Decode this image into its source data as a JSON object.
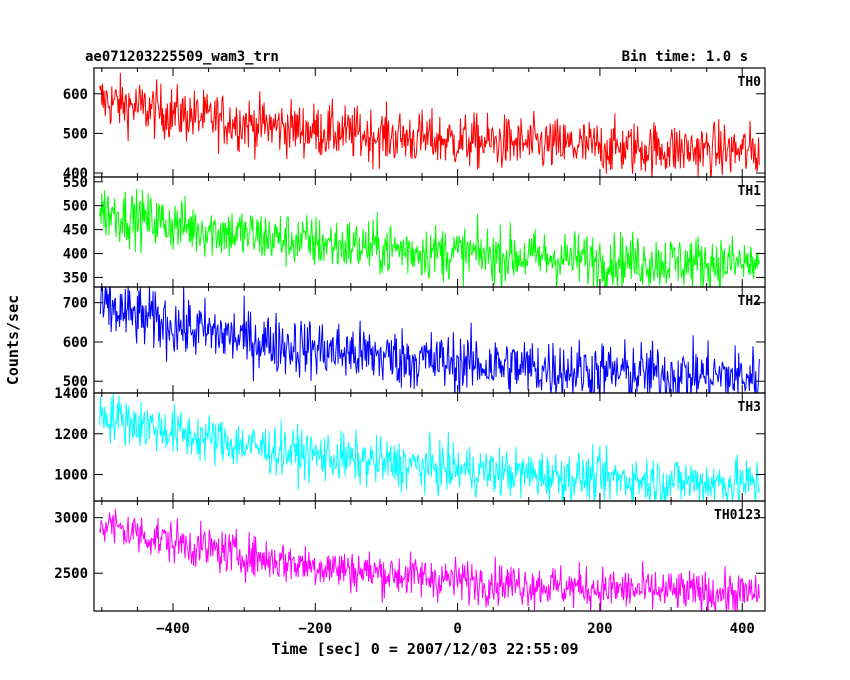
{
  "header": {
    "title": "ae071203225509_wam3_trn",
    "bin_time": "Bin time: 1.0 s"
  },
  "chart_data": {
    "type": "line",
    "xlabel": "Time [sec] 0 = 2007/12/03 22:55:09",
    "ylabel": "Counts/sec",
    "xlim": [
      -511,
      432
    ],
    "x_ticks": [
      -400,
      -200,
      0,
      200,
      400
    ],
    "x_range_data": [
      -503,
      424
    ],
    "bin_time_s": 1.0,
    "panels": [
      {
        "name": "TH0",
        "color": "#ff0000",
        "ylim": [
          390,
          665
        ],
        "yticks": [
          400,
          500,
          600
        ],
        "start": 585,
        "end": 455,
        "noise": 62
      },
      {
        "name": "TH1",
        "color": "#00ff00",
        "ylim": [
          330,
          560
        ],
        "yticks": [
          350,
          400,
          450,
          500,
          550
        ],
        "start": 490,
        "end": 378,
        "noise": 52
      },
      {
        "name": "TH2",
        "color": "#0000ff",
        "ylim": [
          470,
          740
        ],
        "yticks": [
          500,
          600,
          700
        ],
        "start": 690,
        "end": 510,
        "noise": 70
      },
      {
        "name": "TH3",
        "color": "#00ffff",
        "ylim": [
          870,
          1400
        ],
        "yticks": [
          1000,
          1200,
          1400
        ],
        "start": 1300,
        "end": 955,
        "noise": 110
      },
      {
        "name": "TH0123",
        "color": "#ff00ff",
        "ylim": [
          2160,
          3150
        ],
        "yticks": [
          2500,
          3000
        ],
        "start": 2950,
        "end": 2310,
        "noise": 175
      }
    ]
  }
}
